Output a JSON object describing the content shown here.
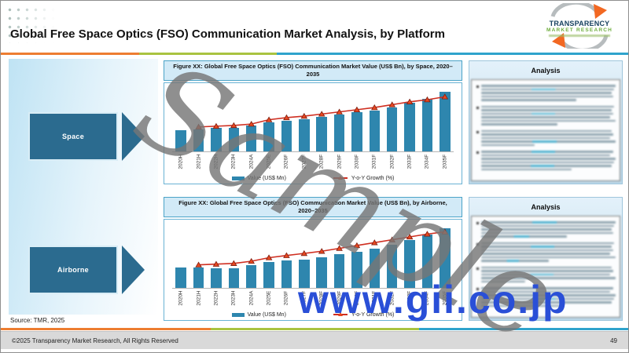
{
  "header": {
    "title": "Global Free Space Optics (FSO) Communication Market Analysis, by Platform",
    "logo": {
      "line1": "TRANSPARENCY",
      "line2": "MARKET RESEARCH"
    }
  },
  "platforms": [
    {
      "label": "Space"
    },
    {
      "label": "Airborne"
    }
  ],
  "analysis_boxes": [
    {
      "title": "Analysis"
    },
    {
      "title": "Analysis"
    }
  ],
  "watermarks": {
    "sample": "Sample",
    "site": "www.gii.co.jp"
  },
  "footer": {
    "source": "Source: TMR, 2025",
    "copyright": "©2025 Transparency Market Research, All Rights Reserved",
    "page": "49"
  },
  "colors": {
    "bar": "#2E86AE",
    "line": "#CF2E20",
    "marker": "#E8471F",
    "accent_orange": "#ED7D31",
    "accent_green": "#A9C340",
    "accent_teal": "#2FA3CC",
    "platform_box": "#2B6B8F",
    "site_watermark_blue": "#2A4FD7"
  },
  "chart_data": [
    {
      "type": "bar",
      "title": "Figure XX: Global Free Space Optics (FSO) Communication Market Value (US$ Bn), by Space, 2020–2035",
      "categories": [
        "2020H",
        "2021H",
        "2022H",
        "2023H",
        "2024A",
        "2025E",
        "2026F",
        "2027F",
        "2028F",
        "2029F",
        "2030F",
        "2031F",
        "2032F",
        "2033F",
        "2034F",
        "2035F"
      ],
      "series": [
        {
          "name": "Value (US$ Mn)",
          "type": "bar",
          "values": [
            35,
            37,
            39,
            40,
            43,
            49,
            52,
            54,
            58,
            62,
            66,
            68,
            74,
            81,
            88,
            100
          ]
        },
        {
          "name": "Y-o-Y Growth (%)",
          "type": "line",
          "values": [
            null,
            3.2,
            3.3,
            3.4,
            3.6,
            4.2,
            4.5,
            4.7,
            5.0,
            5.3,
            5.6,
            5.9,
            6.3,
            6.7,
            7.0,
            7.4
          ]
        }
      ],
      "value_scale": [
        0,
        100
      ],
      "growth_scale": [
        0,
        8
      ],
      "value_axis_labels_visible": false,
      "legend_position": "bottom"
    },
    {
      "type": "bar",
      "title": "Figure XX: Global Free Space Optics (FSO) Communication Market Value (US$ Bn), by Airborne, 2020–2035",
      "categories": [
        "2020H",
        "2021H",
        "2022H",
        "2023H",
        "2024A",
        "2025E",
        "2026F",
        "2027F",
        "2028F",
        "2029F",
        "2030F",
        "2031F",
        "2032F",
        "2033F",
        "2034F",
        "2035F"
      ],
      "series": [
        {
          "name": "Value (US$ Mn)",
          "type": "bar",
          "values": [
            34,
            34,
            33,
            33,
            38,
            43,
            46,
            48,
            51,
            56,
            61,
            66,
            72,
            80,
            89,
            100
          ]
        },
        {
          "name": "Y-o-Y Growth (%)",
          "type": "line",
          "values": [
            null,
            3.0,
            3.1,
            3.2,
            3.5,
            4.0,
            4.3,
            4.6,
            4.9,
            5.3,
            5.7,
            6.1,
            6.5,
            6.9,
            7.3,
            7.6
          ]
        }
      ],
      "value_scale": [
        0,
        100
      ],
      "growth_scale": [
        0,
        8
      ],
      "value_axis_labels_visible": false,
      "legend_position": "bottom"
    }
  ]
}
